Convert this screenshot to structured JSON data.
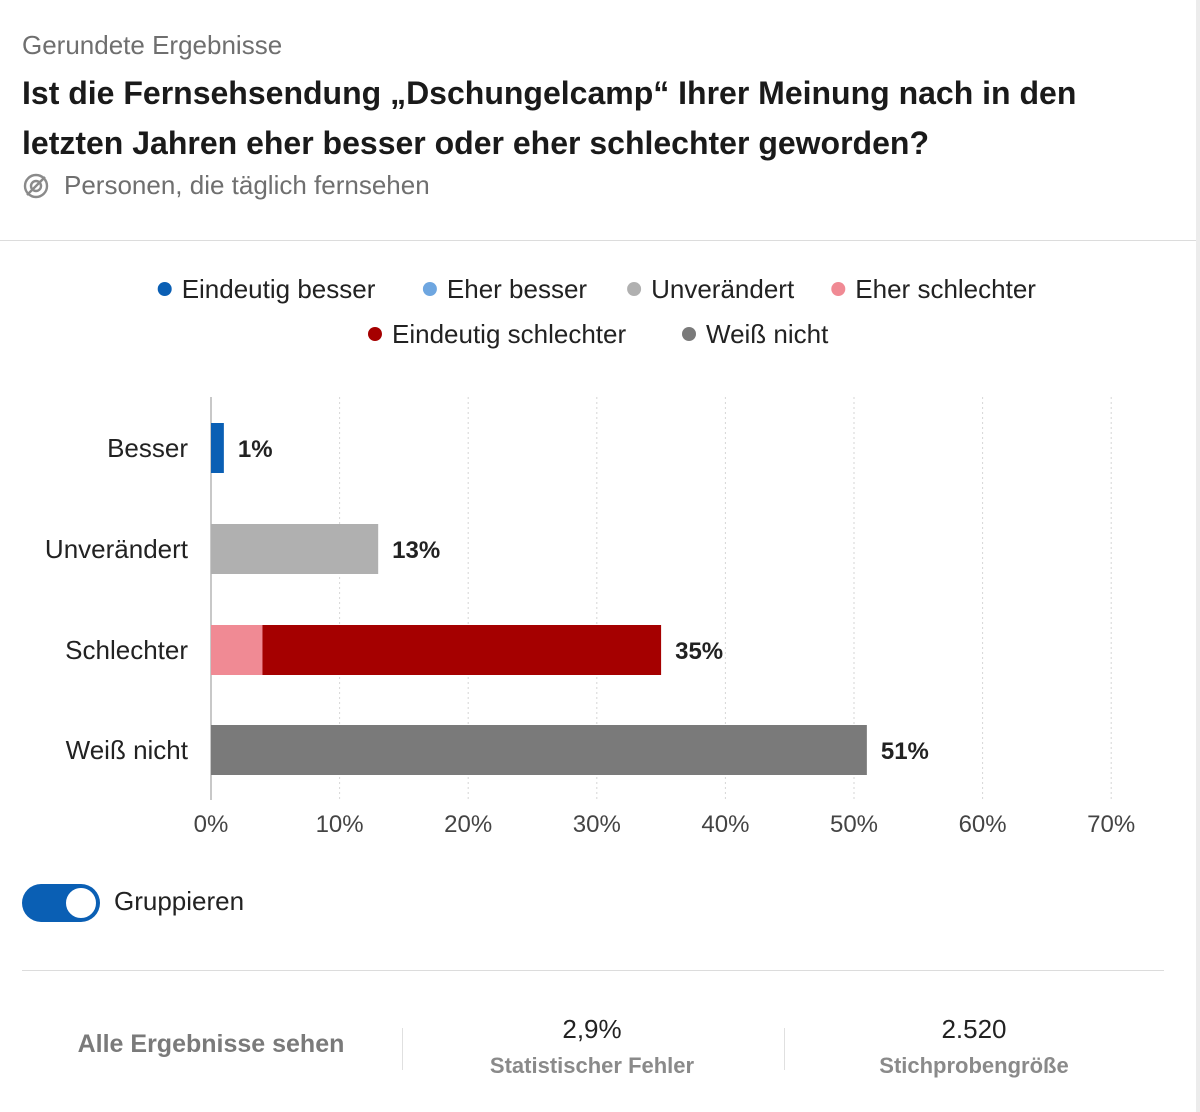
{
  "header": {
    "kicker": "Gerundete Ergebnisse",
    "question": "Ist die Fernsehsendung „Dschungelcamp“ Ihrer Meinung nach in den letzten Jahren eher besser oder eher schlechter geworden?",
    "audience": "Personen, die täglich fernsehen",
    "audience_icon": "filter-icon"
  },
  "chart_data": {
    "type": "bar",
    "orientation": "horizontal",
    "stacked": true,
    "legend_position": "top-center",
    "legend": [
      {
        "name": "Eindeutig besser",
        "color": "#0a5fb4"
      },
      {
        "name": "Eher besser",
        "color": "#6ea6e0"
      },
      {
        "name": "Unverändert",
        "color": "#b0b0b0"
      },
      {
        "name": "Eher schlechter",
        "color": "#f08a94"
      },
      {
        "name": "Eindeutig schlechter",
        "color": "#a50000"
      },
      {
        "name": "Weiß nicht",
        "color": "#7a7a7a"
      }
    ],
    "categories": [
      "Besser",
      "Unverändert",
      "Schlechter",
      "Weiß nicht"
    ],
    "series": [
      {
        "name": "Eindeutig besser",
        "color": "#0a5fb4",
        "values": [
          1,
          0,
          0,
          0
        ]
      },
      {
        "name": "Unverändert",
        "color": "#b0b0b0",
        "values": [
          0,
          13,
          0,
          0
        ]
      },
      {
        "name": "Eher schlechter",
        "color": "#f08a94",
        "values": [
          0,
          0,
          4,
          0
        ]
      },
      {
        "name": "Eindeutig schlechter",
        "color": "#a50000",
        "values": [
          0,
          0,
          31,
          0
        ]
      },
      {
        "name": "Weiß nicht",
        "color": "#7a7a7a",
        "values": [
          0,
          0,
          0,
          51
        ]
      }
    ],
    "totals": [
      "1%",
      "13%",
      "35%",
      "51%"
    ],
    "xlim": [
      0,
      70
    ],
    "xticks": [
      "0%",
      "10%",
      "20%",
      "30%",
      "40%",
      "50%",
      "60%",
      "70%"
    ],
    "grid": true,
    "xlabel": "",
    "ylabel": ""
  },
  "controls": {
    "group_toggle_label": "Gruppieren",
    "group_toggle_on": true
  },
  "footer": {
    "all_results_label": "Alle Ergebnisse sehen",
    "error_value": "2,9%",
    "error_label": "Statistischer Fehler",
    "sample_value": "2.520",
    "sample_label": "Stichprobengröße"
  }
}
